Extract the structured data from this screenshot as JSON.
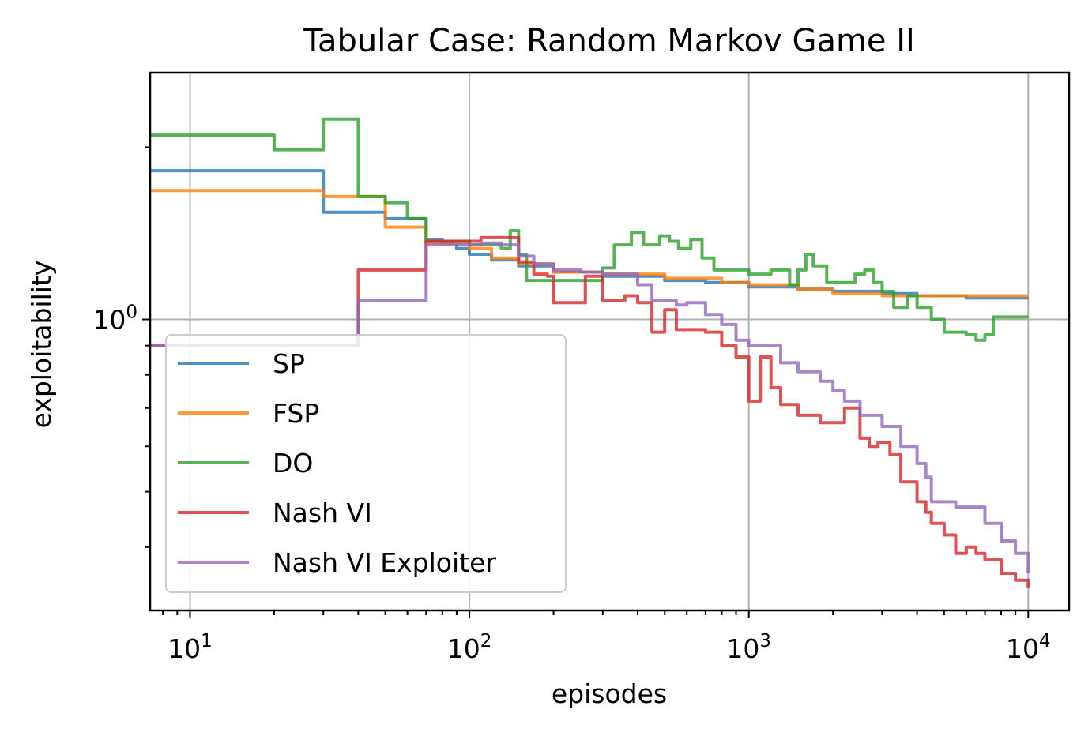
{
  "chart_data": {
    "type": "line",
    "title": "Tabular Case: Random Markov Game II",
    "xlabel": "episodes",
    "ylabel": "exploitability",
    "xscale": "log",
    "yscale": "log",
    "xlim": [
      7.2,
      14000
    ],
    "ylim": [
      0.31,
      2.7
    ],
    "grid": true,
    "legend_position": "lower-left",
    "x_major_ticks": [
      10,
      100,
      1000,
      10000
    ],
    "x_tick_labels": [
      {
        "base": "10",
        "exp": "1"
      },
      {
        "base": "10",
        "exp": "2"
      },
      {
        "base": "10",
        "exp": "3"
      },
      {
        "base": "10",
        "exp": "4"
      }
    ],
    "y_major_ticks": [
      1.0
    ],
    "y_tick_labels": [
      {
        "base": "10",
        "exp": "0"
      }
    ],
    "series": [
      {
        "name": "SP",
        "color": "#1f77b4",
        "points": [
          [
            7,
            1.82
          ],
          [
            10,
            1.82
          ],
          [
            20,
            1.82
          ],
          [
            30,
            1.54
          ],
          [
            40,
            1.54
          ],
          [
            50,
            1.5
          ],
          [
            60,
            1.5
          ],
          [
            70,
            1.38
          ],
          [
            80,
            1.36
          ],
          [
            90,
            1.33
          ],
          [
            100,
            1.3
          ],
          [
            120,
            1.27
          ],
          [
            150,
            1.24
          ],
          [
            200,
            1.21
          ],
          [
            300,
            1.19
          ],
          [
            500,
            1.17
          ],
          [
            700,
            1.16
          ],
          [
            1000,
            1.14
          ],
          [
            1500,
            1.13
          ],
          [
            2000,
            1.12
          ],
          [
            3000,
            1.11
          ],
          [
            4000,
            1.1
          ],
          [
            6000,
            1.09
          ],
          [
            8000,
            1.09
          ],
          [
            10000,
            1.09
          ]
        ]
      },
      {
        "name": "FSP",
        "color": "#ff7f0e",
        "points": [
          [
            7,
            1.68
          ],
          [
            10,
            1.68
          ],
          [
            20,
            1.68
          ],
          [
            30,
            1.64
          ],
          [
            40,
            1.64
          ],
          [
            50,
            1.45
          ],
          [
            60,
            1.45
          ],
          [
            70,
            1.36
          ],
          [
            80,
            1.36
          ],
          [
            100,
            1.33
          ],
          [
            120,
            1.28
          ],
          [
            150,
            1.25
          ],
          [
            200,
            1.21
          ],
          [
            300,
            1.2
          ],
          [
            500,
            1.18
          ],
          [
            800,
            1.16
          ],
          [
            1000,
            1.15
          ],
          [
            1500,
            1.13
          ],
          [
            2000,
            1.11
          ],
          [
            3000,
            1.1
          ],
          [
            5000,
            1.1
          ],
          [
            7000,
            1.1
          ],
          [
            10000,
            1.1
          ]
        ]
      },
      {
        "name": "DO",
        "color": "#2ca02c",
        "points": [
          [
            7,
            2.1
          ],
          [
            10,
            2.1
          ],
          [
            20,
            1.98
          ],
          [
            30,
            2.24
          ],
          [
            40,
            1.64
          ],
          [
            50,
            1.6
          ],
          [
            60,
            1.5
          ],
          [
            70,
            1.37
          ],
          [
            100,
            1.35
          ],
          [
            130,
            1.33
          ],
          [
            140,
            1.43
          ],
          [
            150,
            1.3
          ],
          [
            160,
            1.17
          ],
          [
            200,
            1.17
          ],
          [
            260,
            1.17
          ],
          [
            300,
            1.23
          ],
          [
            330,
            1.35
          ],
          [
            380,
            1.42
          ],
          [
            420,
            1.35
          ],
          [
            480,
            1.4
          ],
          [
            520,
            1.37
          ],
          [
            560,
            1.33
          ],
          [
            620,
            1.38
          ],
          [
            680,
            1.28
          ],
          [
            750,
            1.22
          ],
          [
            850,
            1.22
          ],
          [
            1000,
            1.2
          ],
          [
            1200,
            1.22
          ],
          [
            1400,
            1.15
          ],
          [
            1500,
            1.22
          ],
          [
            1600,
            1.3
          ],
          [
            1700,
            1.24
          ],
          [
            1900,
            1.16
          ],
          [
            2200,
            1.16
          ],
          [
            2400,
            1.2
          ],
          [
            2600,
            1.22
          ],
          [
            2800,
            1.16
          ],
          [
            3000,
            1.12
          ],
          [
            3300,
            1.05
          ],
          [
            3700,
            1.1
          ],
          [
            4000,
            1.05
          ],
          [
            4500,
            1.0
          ],
          [
            5000,
            0.95
          ],
          [
            6000,
            0.94
          ],
          [
            6500,
            0.92
          ],
          [
            7000,
            0.94
          ],
          [
            7500,
            1.01
          ],
          [
            8000,
            1.01
          ],
          [
            10000,
            1.01
          ]
        ]
      },
      {
        "name": "Nash VI",
        "color": "#d62728",
        "points": [
          [
            7,
            0.9
          ],
          [
            10,
            0.9
          ],
          [
            20,
            0.9
          ],
          [
            30,
            0.9
          ],
          [
            40,
            1.22
          ],
          [
            50,
            1.22
          ],
          [
            60,
            1.22
          ],
          [
            70,
            1.37
          ],
          [
            90,
            1.37
          ],
          [
            110,
            1.39
          ],
          [
            130,
            1.39
          ],
          [
            150,
            1.26
          ],
          [
            170,
            1.2
          ],
          [
            190,
            1.19
          ],
          [
            200,
            1.07
          ],
          [
            240,
            1.07
          ],
          [
            260,
            1.19
          ],
          [
            300,
            1.08
          ],
          [
            360,
            1.1
          ],
          [
            400,
            1.07
          ],
          [
            450,
            0.95
          ],
          [
            500,
            1.04
          ],
          [
            550,
            0.96
          ],
          [
            600,
            0.96
          ],
          [
            700,
            0.95
          ],
          [
            800,
            0.9
          ],
          [
            900,
            0.86
          ],
          [
            1000,
            0.72
          ],
          [
            1100,
            0.86
          ],
          [
            1200,
            0.76
          ],
          [
            1300,
            0.71
          ],
          [
            1500,
            0.68
          ],
          [
            1800,
            0.66
          ],
          [
            2000,
            0.66
          ],
          [
            2200,
            0.7
          ],
          [
            2500,
            0.62
          ],
          [
            2700,
            0.6
          ],
          [
            2900,
            0.61
          ],
          [
            3200,
            0.58
          ],
          [
            3500,
            0.52
          ],
          [
            4000,
            0.48
          ],
          [
            4300,
            0.46
          ],
          [
            4500,
            0.44
          ],
          [
            5000,
            0.42
          ],
          [
            5500,
            0.39
          ],
          [
            6000,
            0.4
          ],
          [
            6500,
            0.39
          ],
          [
            7000,
            0.38
          ],
          [
            8000,
            0.36
          ],
          [
            9000,
            0.35
          ],
          [
            10000,
            0.34
          ]
        ]
      },
      {
        "name": "Nash VI Exploiter",
        "color": "#9467bd",
        "points": [
          [
            7,
            0.9
          ],
          [
            10,
            0.9
          ],
          [
            20,
            0.9
          ],
          [
            30,
            0.9
          ],
          [
            40,
            1.08
          ],
          [
            50,
            1.08
          ],
          [
            60,
            1.08
          ],
          [
            70,
            1.35
          ],
          [
            90,
            1.35
          ],
          [
            110,
            1.36
          ],
          [
            130,
            1.35
          ],
          [
            150,
            1.29
          ],
          [
            170,
            1.25
          ],
          [
            200,
            1.22
          ],
          [
            250,
            1.21
          ],
          [
            300,
            1.2
          ],
          [
            350,
            1.2
          ],
          [
            400,
            1.15
          ],
          [
            450,
            1.08
          ],
          [
            500,
            1.08
          ],
          [
            550,
            1.06
          ],
          [
            600,
            1.07
          ],
          [
            700,
            1.02
          ],
          [
            800,
            0.98
          ],
          [
            900,
            0.92
          ],
          [
            1000,
            0.9
          ],
          [
            1100,
            0.9
          ],
          [
            1300,
            0.84
          ],
          [
            1500,
            0.81
          ],
          [
            1800,
            0.78
          ],
          [
            2000,
            0.75
          ],
          [
            2200,
            0.72
          ],
          [
            2500,
            0.68
          ],
          [
            3000,
            0.65
          ],
          [
            3500,
            0.6
          ],
          [
            4000,
            0.56
          ],
          [
            4300,
            0.53
          ],
          [
            4500,
            0.48
          ],
          [
            5000,
            0.48
          ],
          [
            5500,
            0.47
          ],
          [
            6000,
            0.47
          ],
          [
            7000,
            0.44
          ],
          [
            8000,
            0.41
          ],
          [
            9000,
            0.39
          ],
          [
            10000,
            0.36
          ]
        ]
      }
    ]
  }
}
